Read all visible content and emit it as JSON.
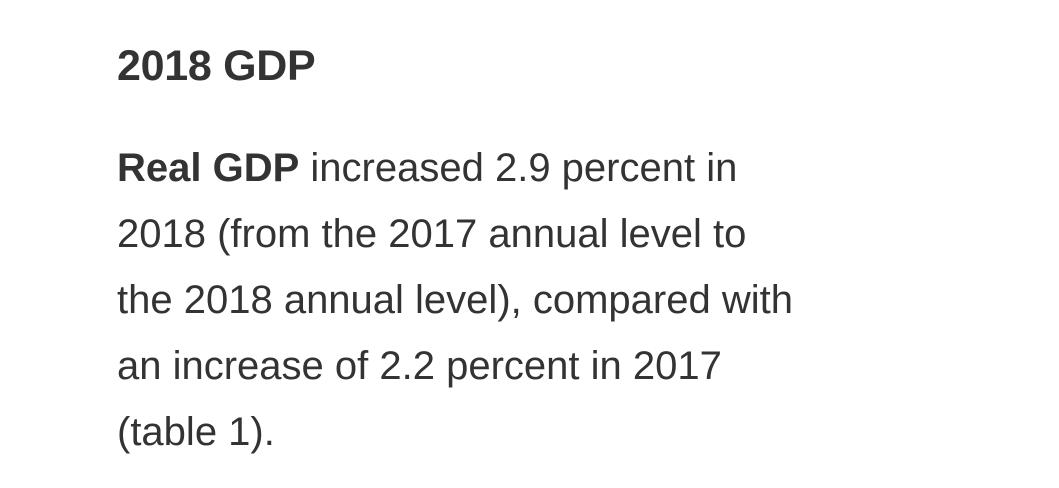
{
  "section": {
    "heading": "2018 GDP",
    "paragraph": {
      "emphasis": "Real GDP",
      "line1_rest": " increased 2.9 percent in",
      "line2": "2018 (from the 2017 annual level to",
      "line3": "the 2018 annual level), compared with",
      "line4": "an increase of 2.2 percent in 2017",
      "line5": "(table 1)."
    }
  }
}
